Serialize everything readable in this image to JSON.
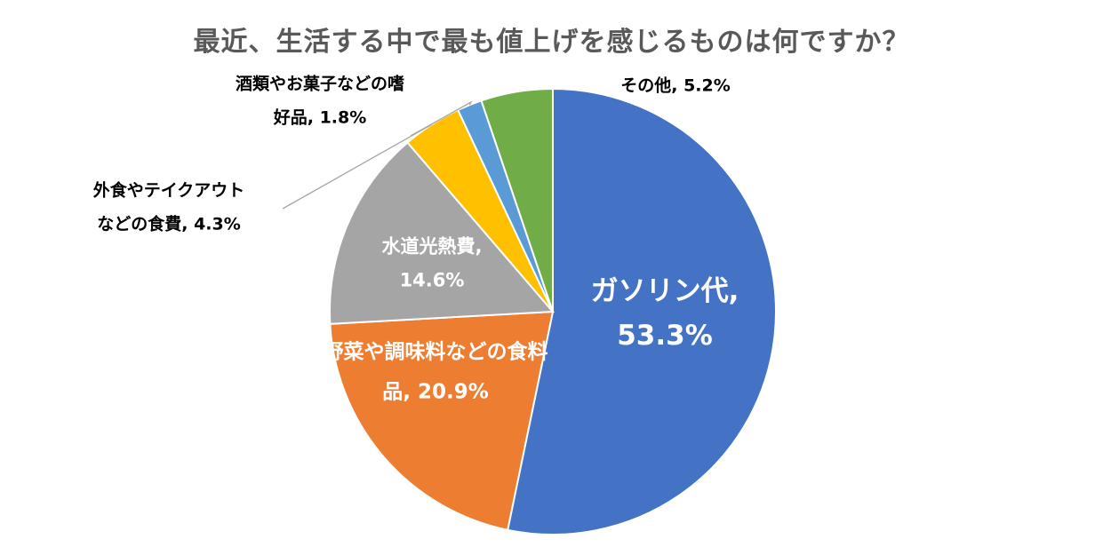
{
  "chart_data": {
    "type": "pie",
    "title": "最近、生活する中で最も値上げを感じるものは何ですか？",
    "series": [
      {
        "name": "",
        "slices": [
          {
            "label": "ガソリン代",
            "value": 53.3,
            "value_label": "53.3%",
            "color": "#4472C4"
          },
          {
            "label": "野菜や調味料などの食料品",
            "value": 20.9,
            "value_label": "20.9%",
            "color": "#ED7D31"
          },
          {
            "label": "水道光熱費",
            "value": 14.6,
            "value_label": "14.6%",
            "color": "#A5A5A5"
          },
          {
            "label": "外食やテイクアウトなどの食費",
            "value": 4.3,
            "value_label": "4.3%",
            "color": "#FFC000"
          },
          {
            "label": "酒類やお菓子などの嗜好品",
            "value": 1.8,
            "value_label": "1.8%",
            "color": "#5B9BD5"
          },
          {
            "label": "その他",
            "value": 5.2,
            "value_label": "5.2%",
            "color": "#70AD47"
          }
        ]
      }
    ],
    "start_angle": "12 o'clock",
    "direction": "clockwise",
    "legend": "none"
  }
}
